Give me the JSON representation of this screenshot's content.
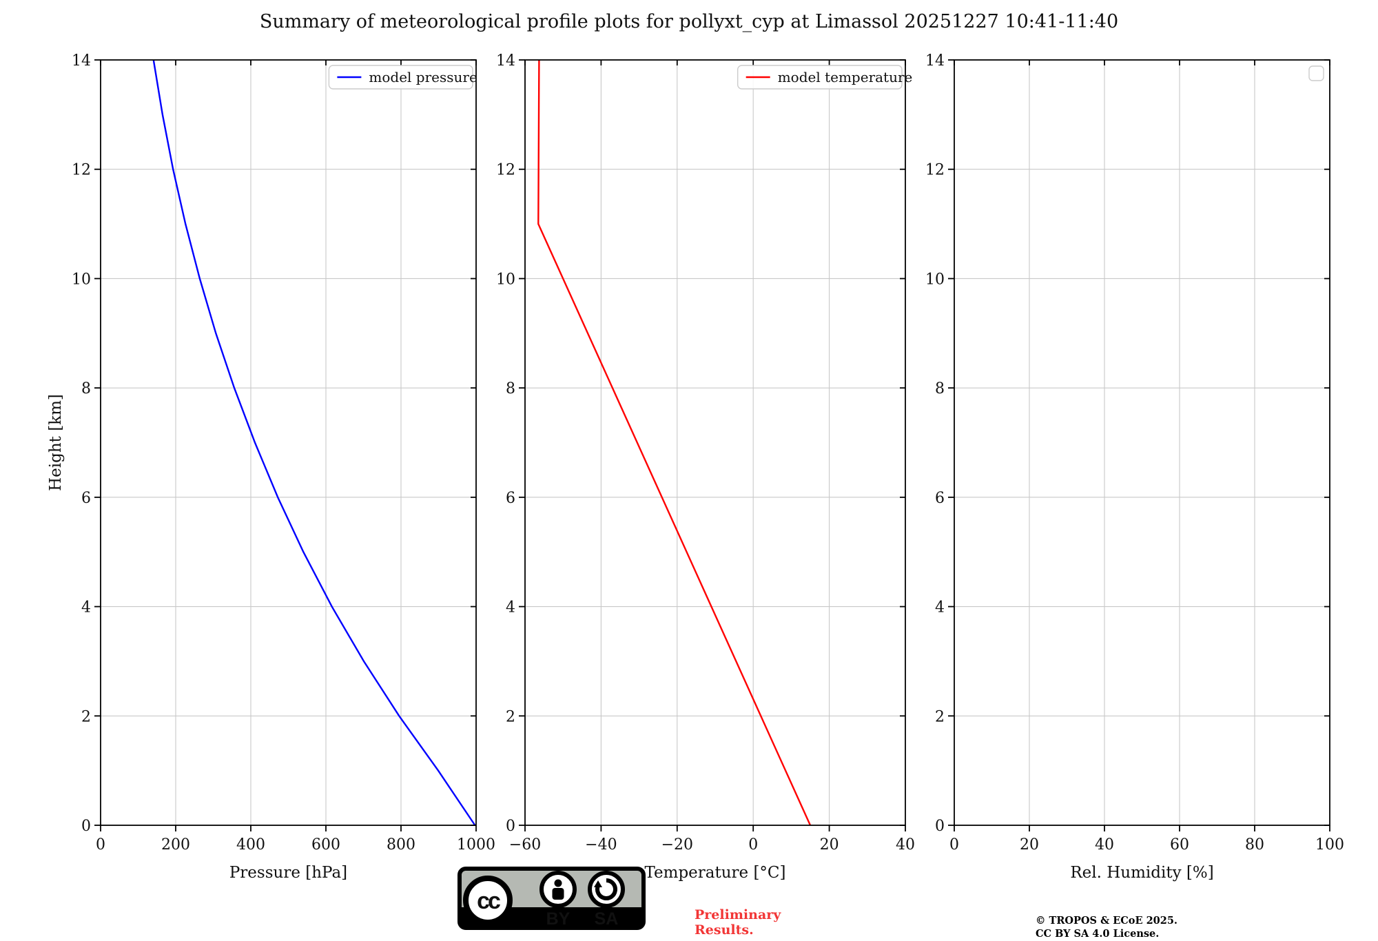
{
  "title": "Summary of meteorological profile plots for pollyxt_cyp at Limassol 20251227 10:41-11:40",
  "colors": {
    "pressure_line": "#0000ff",
    "temperature_line": "#ff0000",
    "grid": "#c8c8c8",
    "axis": "#000000",
    "legend_border": "#cccccc",
    "preliminary_text": "#f23535",
    "badge_gray": "#b5b9b3",
    "badge_black": "#000000"
  },
  "chart_data": [
    {
      "type": "line",
      "xlabel": "Pressure [hPa]",
      "ylabel": "Height [km]",
      "xlim": [
        0,
        1000
      ],
      "ylim": [
        0,
        14
      ],
      "xticks": [
        0,
        200,
        400,
        600,
        800,
        1000
      ],
      "yticks": [
        0,
        2,
        4,
        6,
        8,
        10,
        12,
        14
      ],
      "grid": true,
      "legend_position": "upper right",
      "series": [
        {
          "name": "model pressure",
          "color": "#0000ff",
          "points": [
            [
              997,
              0
            ],
            [
              899,
              1
            ],
            [
              795,
              2
            ],
            [
              701,
              3
            ],
            [
              616,
              4
            ],
            [
              540,
              5
            ],
            [
              472,
              6
            ],
            [
              411,
              7
            ],
            [
              356,
              8
            ],
            [
              307,
              9
            ],
            [
              264,
              10
            ],
            [
              226,
              11
            ],
            [
              193,
              12
            ],
            [
              165,
              13
            ],
            [
              141,
              14
            ]
          ]
        }
      ]
    },
    {
      "type": "line",
      "xlabel": "Temperature [°C]",
      "ylabel": "",
      "xlim": [
        -60,
        40
      ],
      "ylim": [
        0,
        14
      ],
      "xticks": [
        -60,
        -40,
        -20,
        0,
        20,
        40
      ],
      "yticks": [
        0,
        2,
        4,
        6,
        8,
        10,
        12,
        14
      ],
      "grid": true,
      "legend_position": "upper right",
      "series": [
        {
          "name": "model temperature",
          "color": "#ff0000",
          "points": [
            [
              15,
              0
            ],
            [
              -56.5,
              11
            ],
            [
              -56.3,
              14
            ]
          ]
        }
      ]
    },
    {
      "type": "line",
      "xlabel": "Rel. Humidity [%]",
      "ylabel": "",
      "xlim": [
        0,
        100
      ],
      "ylim": [
        0,
        14
      ],
      "xticks": [
        0,
        20,
        40,
        60,
        80,
        100
      ],
      "yticks": [
        0,
        2,
        4,
        6,
        8,
        10,
        12,
        14
      ],
      "grid": true,
      "legend_position": "upper right",
      "series": []
    }
  ],
  "footer": {
    "badge": {
      "cc": "cc",
      "by": "BY",
      "sa": "SA"
    },
    "preliminary_line1": "Preliminary",
    "preliminary_line2": "Results.",
    "copyright_line1": "© TROPOS & ECoE 2025.",
    "copyright_line2": "CC BY SA 4.0 License."
  }
}
